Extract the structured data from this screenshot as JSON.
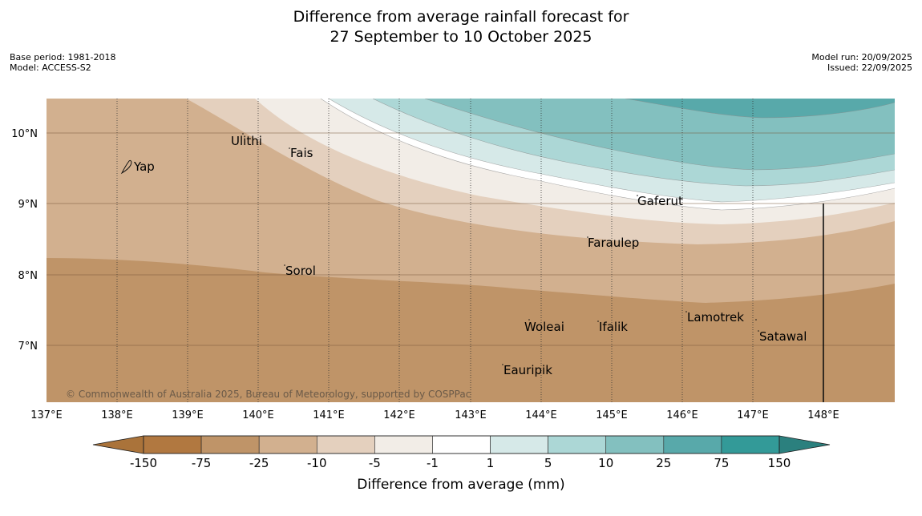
{
  "title": {
    "line1": "Difference from average rainfall forecast for",
    "line2": "27 September to 10 October 2025"
  },
  "meta": {
    "base_period": "Base period: 1981-2018",
    "model": "Model: ACCESS-S2",
    "model_run": "Model run: 20/09/2025",
    "issued": "Issued: 22/09/2025"
  },
  "map": {
    "lon_labels": [
      "137°E",
      "138°E",
      "139°E",
      "140°E",
      "141°E",
      "142°E",
      "143°E",
      "144°E",
      "145°E",
      "146°E",
      "147°E",
      "148°E"
    ],
    "lat_labels": [
      "10°N",
      "9°N",
      "8°N",
      "7°N"
    ],
    "places": {
      "yap": "Yap",
      "ulithi": "Ulithi",
      "fais": "Fais",
      "gaferut": "Gaferut",
      "faraulep": "Faraulep",
      "sorol": "Sorol",
      "lamotrek": "Lamotrek",
      "woleai": "Woleai",
      "ifalik": "Ifalik",
      "satawal": "Satawal",
      "eauripik": "Eauripik"
    },
    "copyright": "© Commonwealth of Australia 2025, Bureau of Meteorology, supported by COSPPac"
  },
  "colorbar": {
    "labels": [
      "-150",
      "-75",
      "-25",
      "-10",
      "-5",
      "-1",
      "1",
      "5",
      "10",
      "25",
      "75",
      "150"
    ],
    "colors": [
      "#aa733a",
      "#b17840",
      "#bf9468",
      "#d2b08f",
      "#e4d0be",
      "#f2ede7",
      "#ffffff",
      "#d6e9e8",
      "#acd7d6",
      "#83c0bf",
      "#58a9aa",
      "#339a98",
      "#2b807e"
    ],
    "title": "Difference from average (mm)"
  }
}
